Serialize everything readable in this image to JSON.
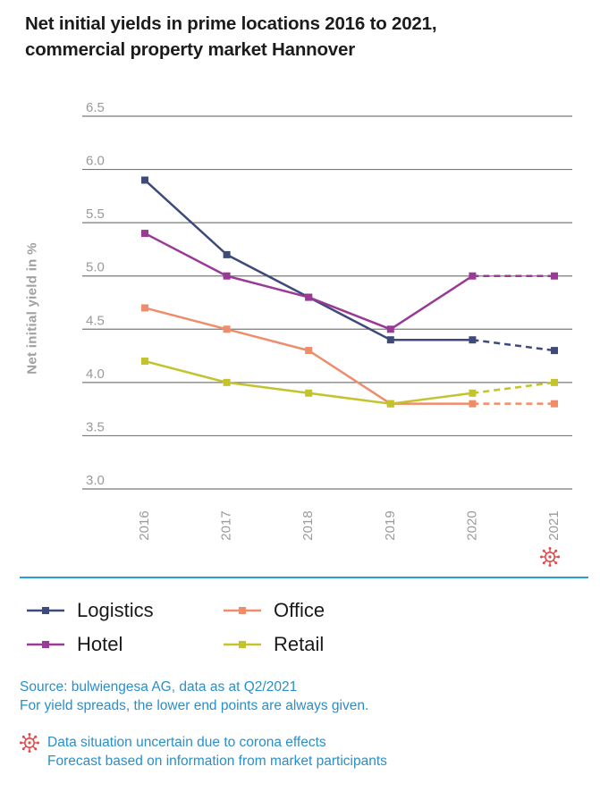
{
  "title_line1": "Net initial yields in prime locations 2016 to 2021,",
  "title_line2": "commercial property market Hannover",
  "source_line1": "Source: bulwiengesa AG, data as at Q2/2021",
  "source_line2": "For yield spreads, the lower end points are always given.",
  "note_line1": "Data situation uncertain due to corona effects",
  "note_line2": "Forecast based on information from market participants",
  "corona_icon": "virus-icon",
  "colors": {
    "logistics": "#3d4a7a",
    "hotel": "#9b3a96",
    "office": "#ef8c6a",
    "retail": "#c3c32d",
    "grid": "#7a7a7a",
    "accent": "#2a9fd6",
    "corona": "#e04a4a"
  },
  "chart_data": {
    "type": "line",
    "title": "Net initial yields in prime locations 2016 to 2021, commercial property market Hannover",
    "ylabel": "Net initial yield in %",
    "xlabel": "",
    "x": [
      "2016",
      "2017",
      "2018",
      "2019",
      "2020",
      "2021"
    ],
    "yticks": [
      "3.0",
      "3.5",
      "4.0",
      "4.5",
      "5.0",
      "5.5",
      "6.0",
      "6.5"
    ],
    "ylim": [
      3.0,
      6.5
    ],
    "grid": true,
    "legend_placement": "bottom",
    "forecast_from_index": 4,
    "series": [
      {
        "name": "Logistics",
        "key": "logistics",
        "values": [
          5.9,
          5.2,
          4.8,
          4.4,
          4.4,
          4.3
        ]
      },
      {
        "name": "Hotel",
        "key": "hotel",
        "values": [
          5.4,
          5.0,
          4.8,
          4.5,
          5.0,
          5.0
        ]
      },
      {
        "name": "Office",
        "key": "office",
        "values": [
          4.7,
          4.5,
          4.3,
          3.8,
          3.8,
          3.8
        ]
      },
      {
        "name": "Retail",
        "key": "retail",
        "values": [
          4.2,
          4.0,
          3.9,
          3.8,
          3.9,
          4.0
        ]
      }
    ]
  },
  "legend": [
    {
      "label": "Logistics",
      "key": "logistics"
    },
    {
      "label": "Office",
      "key": "office"
    },
    {
      "label": "Hotel",
      "key": "hotel"
    },
    {
      "label": "Retail",
      "key": "retail"
    }
  ]
}
